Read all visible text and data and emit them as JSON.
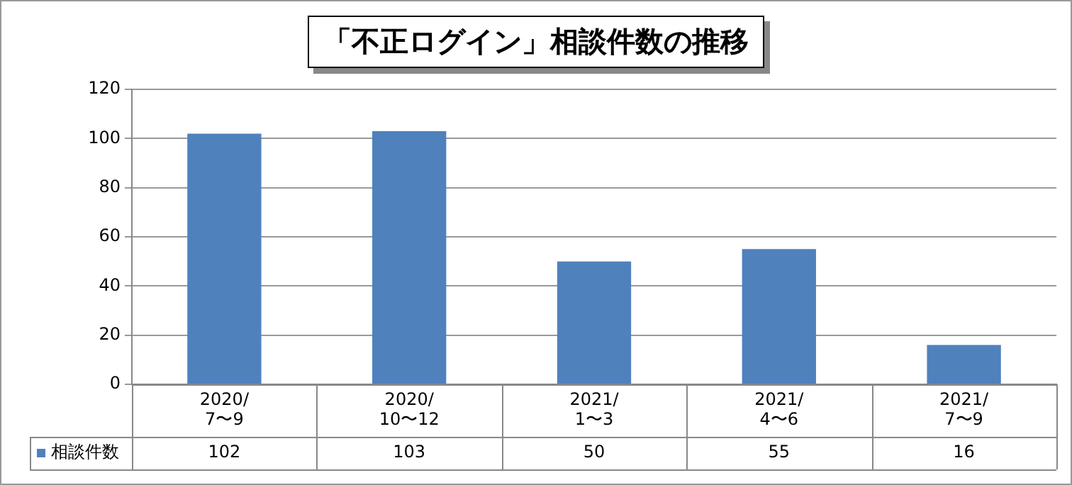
{
  "chart_data": {
    "type": "bar",
    "title": "「不正ログイン」相談件数の推移",
    "categories": [
      "2020/\n7〜9",
      "2020/\n10〜12",
      "2021/\n1〜3",
      "2021/\n4〜6",
      "2021/\n7〜9"
    ],
    "series": [
      {
        "name": "相談件数",
        "color": "#4f81bd",
        "values": [
          102,
          103,
          50,
          55,
          16
        ]
      }
    ],
    "ylim": [
      0,
      120
    ],
    "yticks": [
      0,
      20,
      40,
      60,
      80,
      100,
      120
    ],
    "grid": "y",
    "data_labels": true
  }
}
